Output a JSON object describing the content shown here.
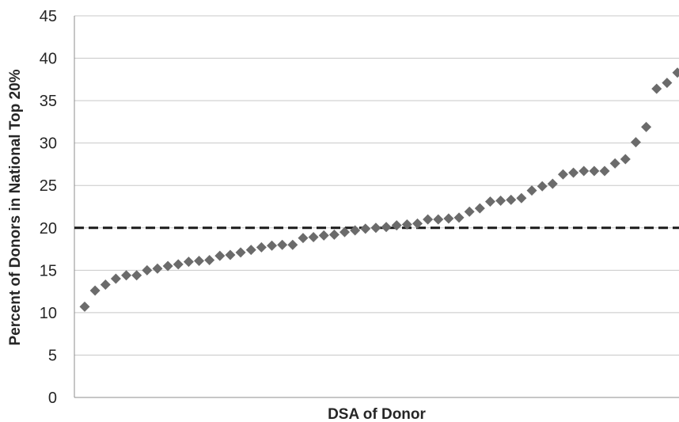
{
  "chart_data": {
    "type": "scatter",
    "title": "",
    "xlabel": "DSA of Donor",
    "ylabel": "Percent of Donors in National Top 20%",
    "ylim": [
      0,
      45
    ],
    "yticks": [
      0,
      5,
      10,
      15,
      20,
      25,
      30,
      35,
      40,
      45
    ],
    "grid": true,
    "reference_line": {
      "y": 20,
      "style": "dashed",
      "color": "#1a1a1a"
    },
    "marker": {
      "shape": "diamond",
      "color": "#6b6b6b"
    },
    "x": [
      1,
      2,
      3,
      4,
      5,
      6,
      7,
      8,
      9,
      10,
      11,
      12,
      13,
      14,
      15,
      16,
      17,
      18,
      19,
      20,
      21,
      22,
      23,
      24,
      25,
      26,
      27,
      28,
      29,
      30,
      31,
      32,
      33,
      34,
      35,
      36,
      37,
      38,
      39,
      40,
      41,
      42,
      43,
      44,
      45,
      46,
      47,
      48,
      49,
      50,
      51,
      52,
      53,
      54,
      55,
      56,
      57,
      58
    ],
    "y": [
      10.7,
      12.6,
      13.3,
      14.0,
      14.4,
      14.4,
      15.0,
      15.2,
      15.5,
      15.7,
      16.0,
      16.1,
      16.2,
      16.7,
      16.8,
      17.1,
      17.4,
      17.7,
      17.9,
      18.0,
      18.0,
      18.8,
      18.9,
      19.1,
      19.2,
      19.5,
      19.7,
      19.9,
      20.0,
      20.1,
      20.3,
      20.4,
      20.5,
      21.0,
      21.0,
      21.1,
      21.2,
      21.9,
      22.3,
      23.1,
      23.2,
      23.3,
      23.5,
      24.4,
      24.9,
      25.2,
      26.3,
      26.5,
      26.7,
      26.7,
      26.7,
      27.6,
      28.1,
      30.1,
      31.9,
      36.4,
      37.1,
      38.3
    ]
  }
}
